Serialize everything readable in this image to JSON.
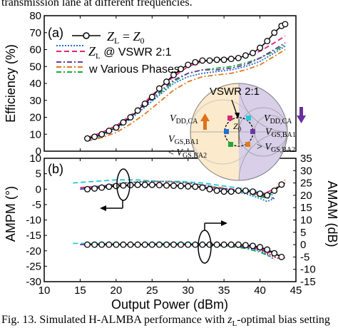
{
  "caption_top": "transmission lane at different frequencies.",
  "caption_bottom": {
    "text_a": "Fig. 13.   Simulated H-ALMBA performance with ",
    "z_sym": "z",
    "z_sub": "L",
    "text_b": "-optimal bias setting"
  },
  "colors": {
    "zl_z0": "#000000",
    "vswr_blue": "#1f6fd6",
    "vswr_magenta": "#e0217a",
    "phase_purple": "#6a3aa0",
    "phase_orange": "#e07a1f",
    "phase_green": "#1fa83a",
    "phase_cyan": "#22c8d8",
    "phase_red": "#d62020",
    "inset_left_fill": "#fbeacb",
    "inset_right_fill": "#d9cfe9",
    "arrow_orange": "#e0701a",
    "arrow_purple": "#6a2ea0"
  },
  "chart_data": [
    {
      "panel_label": "(a)",
      "type": "line",
      "xlim": [
        10,
        45
      ],
      "ylim": [
        0,
        80
      ],
      "x_ticks": [
        10,
        15,
        20,
        25,
        30,
        35,
        40,
        45
      ],
      "y_ticks": [
        0,
        10,
        20,
        30,
        40,
        50,
        60,
        70,
        80
      ],
      "ylabel": "Efficiency (%)",
      "legend": [
        {
          "text_sym": "Z",
          "text_sub": "L",
          "text_mid": " = ",
          "text_sym2": "Z",
          "text_sub2": "0",
          "style": "markers"
        },
        {
          "text_sym": "Z",
          "text_sub": "L",
          "text_rest": " @ VSWR 2:1",
          "style": "dotted-dashed"
        },
        {
          "text_rest": "w  Various Phases",
          "style": "dashdot"
        }
      ],
      "series": [
        {
          "key": "zl_z0",
          "x": [
            16,
            17,
            18,
            19,
            20,
            21,
            22,
            23,
            24,
            25,
            26,
            27,
            28,
            29,
            30,
            31,
            32,
            33,
            34,
            35,
            36,
            37,
            38,
            39,
            40,
            41,
            42,
            43,
            43.5
          ],
          "y": [
            7.5,
            8.5,
            10,
            12,
            14,
            17,
            20,
            24,
            28,
            32,
            37,
            41,
            45,
            48.5,
            51,
            52.5,
            53.5,
            53.5,
            54,
            54,
            54.5,
            55,
            56.5,
            58,
            61,
            65,
            70,
            74,
            75
          ]
        },
        {
          "key": "vswr_blue",
          "x": [
            16,
            18,
            20,
            22,
            24,
            26,
            28,
            30,
            32,
            34,
            36,
            38,
            40,
            42,
            43.5
          ],
          "y": [
            6,
            9,
            13,
            19,
            26,
            33,
            40,
            44,
            46,
            47,
            48,
            50,
            53,
            58,
            62
          ]
        },
        {
          "key": "vswr_magenta",
          "x": [
            16,
            18,
            20,
            22,
            24,
            26,
            28,
            30,
            32,
            34,
            36,
            38,
            40,
            42,
            43.5
          ],
          "y": [
            8,
            11,
            15,
            21,
            29,
            37,
            44,
            50,
            53,
            54,
            55,
            56,
            59,
            64,
            68
          ]
        },
        {
          "key": "phase_purple",
          "x": [
            16,
            18,
            20,
            22,
            24,
            26,
            28,
            30,
            32,
            34,
            36,
            38,
            40,
            42,
            43.5
          ],
          "y": [
            7,
            10,
            14,
            20,
            27,
            35,
            42,
            46,
            48,
            48,
            49,
            51,
            55,
            60,
            64
          ]
        },
        {
          "key": "phase_orange",
          "x": [
            16,
            18,
            20,
            22,
            24,
            26,
            28,
            30,
            32,
            34,
            36,
            38,
            40,
            42,
            43.5
          ],
          "y": [
            6,
            8,
            11,
            16,
            22,
            29,
            36,
            41,
            44,
            45,
            46,
            48,
            51,
            56,
            60
          ]
        },
        {
          "key": "phase_green",
          "x": [
            16,
            18,
            20,
            22,
            24,
            26,
            28,
            30,
            32,
            34,
            36,
            38,
            40,
            42,
            43.5
          ],
          "y": [
            7,
            10,
            14,
            20,
            27,
            34,
            41,
            46,
            48,
            49,
            50,
            52,
            55,
            59,
            63
          ]
        }
      ],
      "inset": {
        "title": "VSWR 2:1",
        "z0_sym": "Z",
        "z0_sub": "0",
        "left_top_sym": "V",
        "left_top_sub": "DD,CA",
        "left_mid_sym": "V",
        "left_mid_sub": "GS,BA1",
        "left_bot_pre": "< ",
        "left_bot_sym": "V",
        "left_bot_sub": "GS,BA2",
        "right_top_sym": "V",
        "right_top_sub": "DD,CA",
        "right_mid_sym": "V",
        "right_mid_sub": "GS,BA1",
        "right_bot_pre": "> ",
        "right_bot_sym": "V",
        "right_bot_sub": "GS,BA2"
      }
    },
    {
      "panel_label": "(b)",
      "type": "line",
      "xlim": [
        10,
        45
      ],
      "ylim": [
        -30,
        10
      ],
      "y2lim": [
        -15,
        35
      ],
      "x_ticks": [
        10,
        15,
        20,
        25,
        30,
        35,
        40,
        45
      ],
      "y_ticks": [
        -30,
        -25,
        -20,
        -15,
        -10,
        -5,
        0,
        5,
        10
      ],
      "y2_ticks": [
        -15,
        -10,
        -5,
        0,
        5,
        10,
        15,
        20,
        25,
        30,
        35
      ],
      "xlabel": "Output Power (dBm)",
      "ylabel": "AMPM (°)",
      "y2label": "AMAM (dB)",
      "ampm": [
        {
          "key": "zl_z0",
          "x": [
            16,
            17,
            18,
            19,
            20,
            21,
            22,
            23,
            24,
            25,
            26,
            27,
            28,
            29,
            30,
            31,
            32,
            33,
            34,
            35,
            36,
            37,
            38,
            39,
            40,
            41,
            42,
            43
          ],
          "y": [
            0,
            0.2,
            0.5,
            0.8,
            1,
            1.2,
            1.3,
            1.4,
            1.4,
            1.4,
            1.3,
            1.2,
            1.1,
            1,
            0.9,
            0.8,
            0.5,
            0,
            -0.5,
            -0.8,
            -0.8,
            -0.5,
            -0.5,
            -0.8,
            -1.5,
            -2,
            -0.5,
            1.5
          ]
        },
        {
          "key": "vswr_blue",
          "x": [
            15,
            18,
            21,
            24,
            27,
            30,
            33,
            36,
            38,
            40,
            41,
            42
          ],
          "y": [
            0,
            1,
            2,
            2.5,
            2.5,
            2,
            1,
            -0.5,
            -1.5,
            -3,
            -4,
            -3
          ]
        },
        {
          "key": "vswr_magenta",
          "x": [
            15,
            18,
            21,
            24,
            27,
            30,
            33,
            36,
            38,
            40,
            42,
            43.5
          ],
          "y": [
            0.5,
            1,
            1.5,
            1.5,
            1.5,
            1,
            0.5,
            0,
            -0.5,
            -2,
            0,
            2
          ]
        },
        {
          "key": "phase_purple",
          "x": [
            15,
            18,
            21,
            24,
            27,
            30,
            33,
            36,
            38,
            40,
            42
          ],
          "y": [
            0,
            0.8,
            1.2,
            1.5,
            1.5,
            1,
            0.5,
            0,
            -0.8,
            -2,
            -3
          ]
        },
        {
          "key": "phase_orange",
          "x": [
            15,
            18,
            21,
            24,
            27,
            30,
            33,
            36,
            38,
            40,
            42,
            43.5
          ],
          "y": [
            0,
            1,
            2,
            2.5,
            2.5,
            2,
            1,
            0,
            -1,
            -2,
            0,
            3
          ]
        },
        {
          "key": "phase_green",
          "x": [
            15,
            18,
            21,
            24,
            27,
            30,
            33,
            36,
            38,
            40,
            41.5
          ],
          "y": [
            0,
            0.5,
            1,
            1.5,
            1.5,
            1,
            0.5,
            0,
            -1,
            -2.5,
            -3
          ]
        },
        {
          "key": "phase_cyan",
          "x": [
            14,
            17,
            20,
            23,
            26,
            29,
            32,
            35,
            38,
            40,
            42
          ],
          "y": [
            2,
            2.5,
            3,
            3,
            2.5,
            2.5,
            2,
            1,
            0,
            -1,
            -2
          ]
        }
      ],
      "amam": [
        {
          "key": "zl_z0",
          "x": [
            16,
            17,
            18,
            19,
            20,
            21,
            22,
            23,
            24,
            25,
            26,
            27,
            28,
            29,
            30,
            31,
            32,
            33,
            34,
            35,
            36,
            37,
            38,
            39,
            40,
            41,
            42,
            43
          ],
          "y": [
            0,
            0,
            0,
            0,
            0,
            0,
            0,
            0,
            0,
            0,
            0,
            0,
            0,
            0,
            0,
            0,
            0,
            0,
            0,
            0,
            0,
            0,
            -0.2,
            -0.5,
            -1,
            -2,
            -3.5,
            -5
          ]
        },
        {
          "key": "vswr_blue",
          "x": [
            15,
            20,
            25,
            30,
            35,
            38,
            40,
            41,
            42
          ],
          "y": [
            0,
            0,
            0,
            0,
            -0.5,
            -1,
            -2.5,
            -4,
            -6
          ]
        },
        {
          "key": "vswr_magenta",
          "x": [
            15,
            20,
            25,
            30,
            35,
            38,
            40,
            42,
            43
          ],
          "y": [
            0,
            0,
            0,
            0,
            0,
            -0.5,
            -1.5,
            -3.5,
            -5
          ]
        },
        {
          "key": "phase_purple",
          "x": [
            15,
            20,
            25,
            30,
            35,
            38,
            40,
            42
          ],
          "y": [
            0,
            0,
            0,
            0,
            -0.2,
            -1,
            -2,
            -4
          ]
        },
        {
          "key": "phase_orange",
          "x": [
            15,
            20,
            25,
            30,
            35,
            38,
            40,
            42,
            43.5
          ],
          "y": [
            0,
            0,
            0,
            0,
            0,
            -0.5,
            -1.5,
            -3.5,
            -5.5
          ]
        },
        {
          "key": "phase_green",
          "x": [
            15,
            20,
            25,
            30,
            35,
            38,
            40,
            41.5
          ],
          "y": [
            0,
            0,
            0,
            0,
            -0.5,
            -1.5,
            -3,
            -5
          ]
        },
        {
          "key": "phase_cyan",
          "x": [
            14,
            20,
            25,
            30,
            35,
            38,
            40,
            42
          ],
          "y": [
            0.5,
            0.5,
            0.5,
            0.5,
            0,
            -0.5,
            -1.5,
            -3
          ]
        },
        {
          "key": "phase_red",
          "x": [
            36,
            38,
            40,
            42,
            43
          ],
          "y": [
            0,
            -0.5,
            -2,
            -5,
            -6
          ]
        }
      ]
    }
  ]
}
